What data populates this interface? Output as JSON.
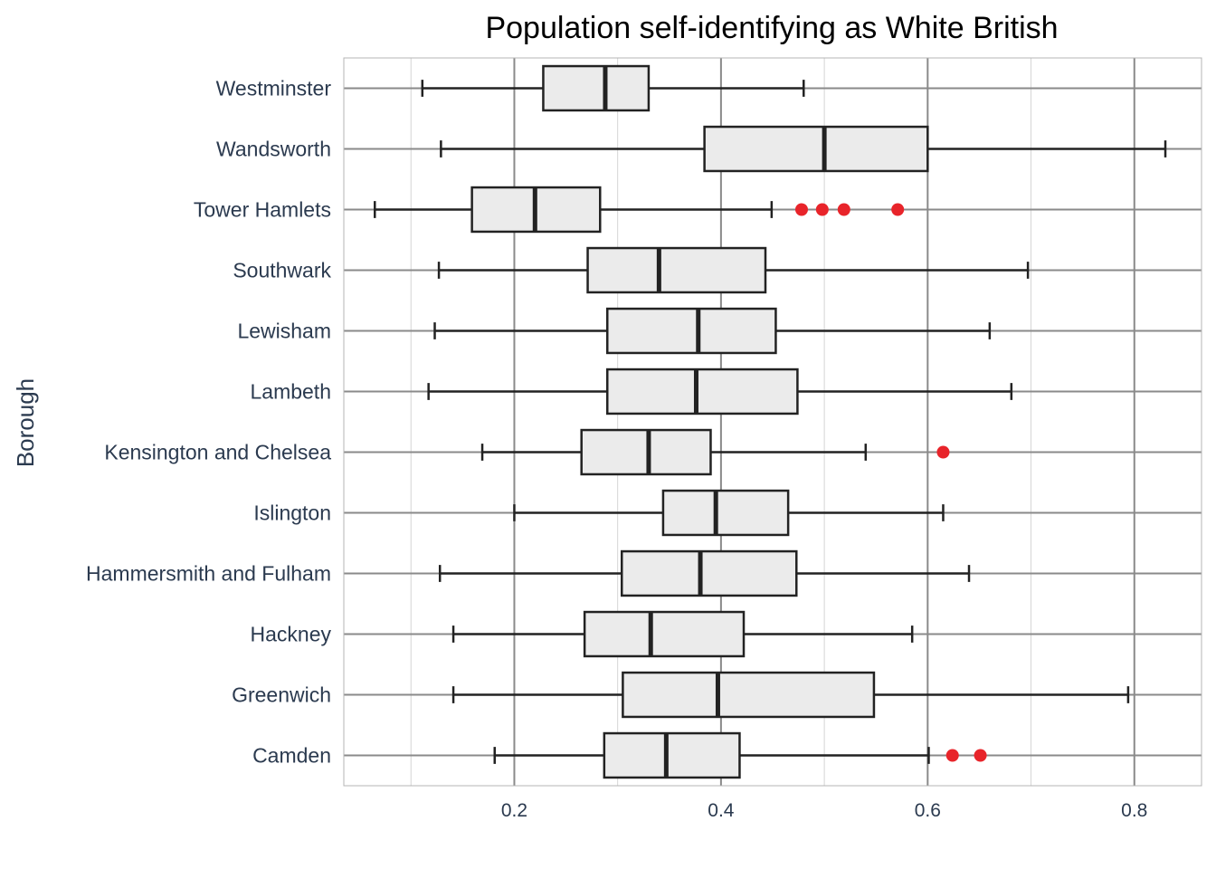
{
  "chart_data": {
    "type": "boxplot",
    "orientation": "horizontal",
    "title": "Population self-identifying as White British",
    "xlabel": "",
    "ylabel": "Borough",
    "xlim": [
      0.035,
      0.865
    ],
    "xticks": [
      0.2,
      0.4,
      0.6,
      0.8
    ],
    "xtick_labels": [
      "0.2",
      "0.4",
      "0.6",
      "0.8"
    ],
    "grid": true,
    "legend": "none",
    "colors": {
      "box_fill": "#ebebeb",
      "box_stroke": "#222222",
      "outlier": "#e8242a",
      "grid_major": "#8a8a8a",
      "grid_minor": "#d4d4d4",
      "text": "#2b3a4f"
    },
    "categories": [
      "Westminster",
      "Wandsworth",
      "Tower Hamlets",
      "Southwark",
      "Lewisham",
      "Lambeth",
      "Kensington and Chelsea",
      "Islington",
      "Hammersmith and Fulham",
      "Hackney",
      "Greenwich",
      "Camden"
    ],
    "boxes": [
      {
        "name": "Westminster",
        "whisker_low": 0.111,
        "q1": 0.228,
        "median": 0.288,
        "q3": 0.33,
        "whisker_high": 0.48,
        "outliers": []
      },
      {
        "name": "Wandsworth",
        "whisker_low": 0.129,
        "q1": 0.384,
        "median": 0.5,
        "q3": 0.6,
        "whisker_high": 0.83,
        "outliers": []
      },
      {
        "name": "Tower Hamlets",
        "whisker_low": 0.065,
        "q1": 0.159,
        "median": 0.22,
        "q3": 0.283,
        "whisker_high": 0.449,
        "outliers": [
          0.478,
          0.498,
          0.519,
          0.571
        ]
      },
      {
        "name": "Southwark",
        "whisker_low": 0.127,
        "q1": 0.271,
        "median": 0.34,
        "q3": 0.443,
        "whisker_high": 0.697,
        "outliers": []
      },
      {
        "name": "Lewisham",
        "whisker_low": 0.123,
        "q1": 0.29,
        "median": 0.378,
        "q3": 0.453,
        "whisker_high": 0.66,
        "outliers": []
      },
      {
        "name": "Lambeth",
        "whisker_low": 0.117,
        "q1": 0.29,
        "median": 0.376,
        "q3": 0.474,
        "whisker_high": 0.681,
        "outliers": []
      },
      {
        "name": "Kensington and Chelsea",
        "whisker_low": 0.169,
        "q1": 0.265,
        "median": 0.33,
        "q3": 0.39,
        "whisker_high": 0.54,
        "outliers": [
          0.615
        ]
      },
      {
        "name": "Islington",
        "whisker_low": 0.2,
        "q1": 0.344,
        "median": 0.395,
        "q3": 0.465,
        "whisker_high": 0.615,
        "outliers": []
      },
      {
        "name": "Hammersmith and Fulham",
        "whisker_low": 0.128,
        "q1": 0.304,
        "median": 0.38,
        "q3": 0.473,
        "whisker_high": 0.64,
        "outliers": []
      },
      {
        "name": "Hackney",
        "whisker_low": 0.141,
        "q1": 0.268,
        "median": 0.332,
        "q3": 0.422,
        "whisker_high": 0.585,
        "outliers": []
      },
      {
        "name": "Greenwich",
        "whisker_low": 0.141,
        "q1": 0.305,
        "median": 0.397,
        "q3": 0.548,
        "whisker_high": 0.794,
        "outliers": []
      },
      {
        "name": "Camden",
        "whisker_low": 0.181,
        "q1": 0.287,
        "median": 0.347,
        "q3": 0.418,
        "whisker_high": 0.601,
        "outliers": [
          0.624,
          0.651
        ]
      }
    ]
  }
}
